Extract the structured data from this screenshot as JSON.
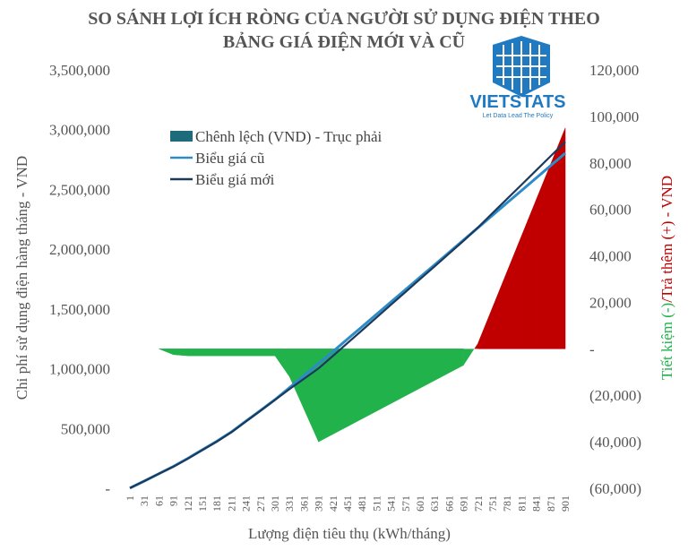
{
  "chart_data": {
    "type": "combo",
    "title": [
      "SO SÁNH LỢI ÍCH RÒNG CỦA NGƯỜI SỬ DỤNG ĐIỆN THEO",
      "BẢNG GIÁ ĐIỆN MỚI VÀ CŨ"
    ],
    "xlabel": "Lượng điện tiêu thụ (kWh/tháng)",
    "ylabel": "Chi phí sử dụng điện hàng tháng - VND",
    "y2label": [
      "Tiết kiệm (-)",
      "/Trả thêm (+) - VND"
    ],
    "y2label_colors": [
      "#22b24c",
      "#c00000"
    ],
    "categories": [
      "1",
      "31",
      "61",
      "91",
      "121",
      "151",
      "181",
      "211",
      "241",
      "271",
      "301",
      "331",
      "361",
      "391",
      "421",
      "451",
      "481",
      "511",
      "541",
      "571",
      "601",
      "631",
      "661",
      "691",
      "721",
      "751",
      "781",
      "811",
      "841",
      "871",
      "901"
    ],
    "ylim": [
      0,
      3500000
    ],
    "yticks": [
      {
        "value": 0,
        "label": "-"
      },
      {
        "value": 500000,
        "label": "500,000"
      },
      {
        "value": 1000000,
        "label": "1,000,000"
      },
      {
        "value": 1500000,
        "label": "1,500,000"
      },
      {
        "value": 2000000,
        "label": "2,000,000"
      },
      {
        "value": 2500000,
        "label": "2,500,000"
      },
      {
        "value": 3000000,
        "label": "3,000,000"
      },
      {
        "value": 3500000,
        "label": "3,500,000"
      }
    ],
    "y2lim": [
      -60000,
      120000
    ],
    "y2ticks": [
      {
        "value": -60000,
        "label": "(60,000)"
      },
      {
        "value": -40000,
        "label": "(40,000)"
      },
      {
        "value": -20000,
        "label": "(20,000)"
      },
      {
        "value": 0,
        "label": "-"
      },
      {
        "value": 20000,
        "label": "20,000"
      },
      {
        "value": 40000,
        "label": "40,000"
      },
      {
        "value": 60000,
        "label": "60,000"
      },
      {
        "value": 80000,
        "label": "80,000"
      },
      {
        "value": 100000,
        "label": "100,000"
      },
      {
        "value": 120000,
        "label": "120,000"
      }
    ],
    "series": [
      {
        "name": "Chênh lệch (VND) - Trục phải",
        "type": "area",
        "axis": "y2",
        "color": "#1e6b7b",
        "positive_color": "#c00000",
        "negative_color": "#22b24c",
        "values": [
          null,
          null,
          0,
          -2500,
          -3000,
          -3000,
          -3000,
          -3000,
          -3000,
          -3000,
          -3000,
          -12000,
          -26000,
          -40000,
          -36700,
          -33400,
          -30100,
          -26800,
          -23500,
          -20200,
          -16900,
          -13600,
          -10300,
          -7000,
          2600,
          18000,
          33400,
          48800,
          64200,
          79600,
          95000
        ]
      },
      {
        "name": "Biểu giá cũ",
        "type": "line",
        "color": "#2e8bc8",
        "values": [
          2000,
          61000,
          122000,
          183000,
          251000,
          323000,
          394000,
          472000,
          562000,
          651000,
          742000,
          842000,
          942000,
          1043000,
          1145000,
          1249000,
          1352000,
          1456000,
          1560000,
          1663000,
          1767000,
          1870000,
          1974000,
          2078000,
          2181000,
          2285000,
          2389000,
          2492000,
          2596000,
          2700000,
          2803000
        ]
      },
      {
        "name": "Biểu giá mới",
        "type": "line",
        "color": "#1b3a5c",
        "values": [
          2000,
          61000,
          122000,
          180500,
          248000,
          320000,
          391000,
          469000,
          559000,
          648000,
          739000,
          830000,
          916000,
          1003000,
          1108300,
          1215600,
          1321900,
          1429200,
          1536500,
          1642800,
          1750100,
          1856400,
          1963700,
          2071000,
          2183600,
          2303000,
          2422400,
          2540800,
          2660200,
          2779600,
          2898000
        ]
      }
    ]
  },
  "logo": {
    "name": "VIETSTATS",
    "tagline": "Let Data Lead The Policy"
  }
}
